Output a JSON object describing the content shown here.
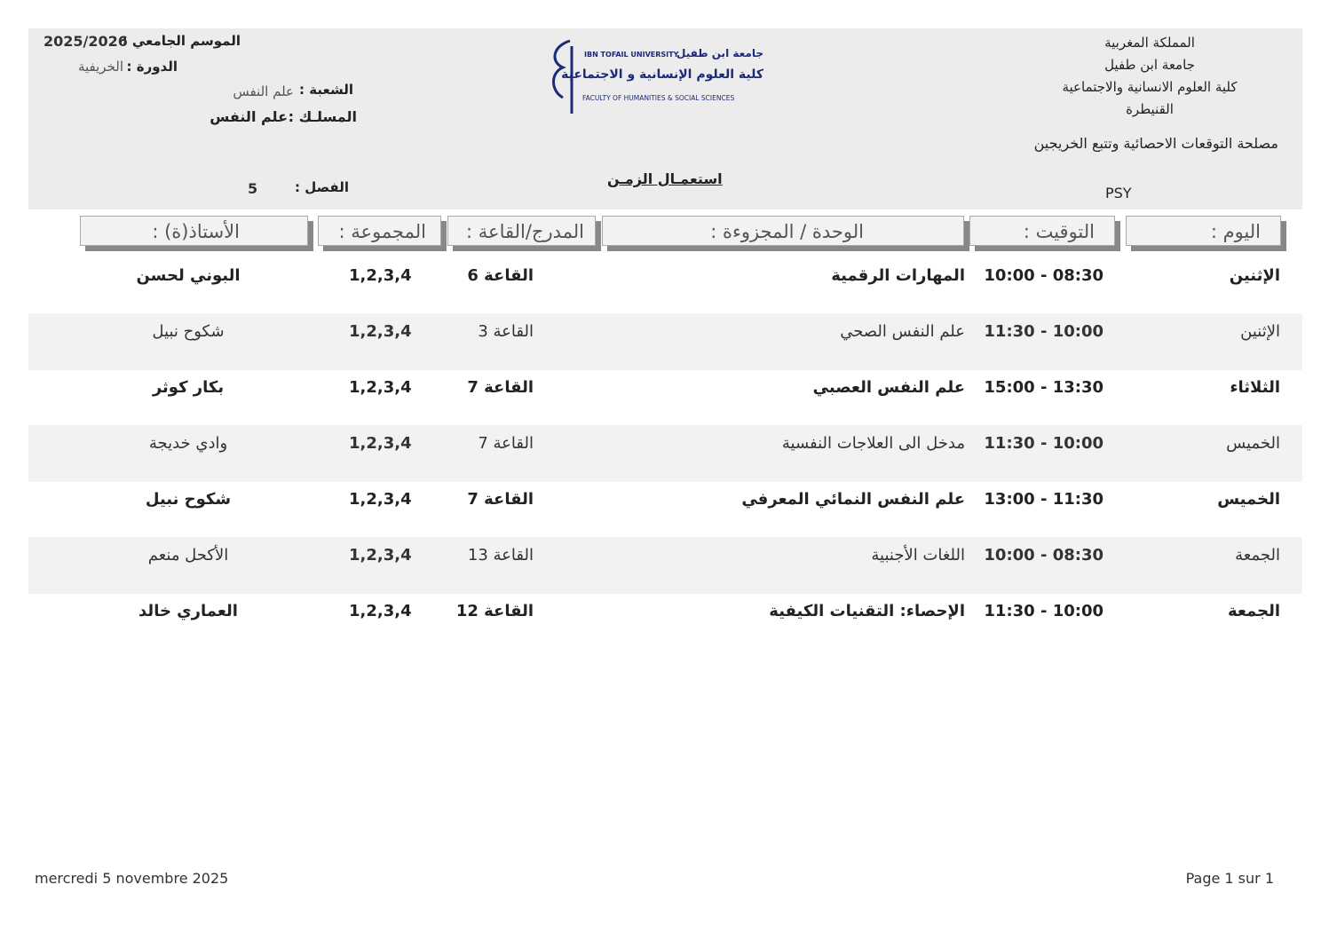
{
  "header_right": {
    "line1": "المملكة المغربية",
    "line2": "جامعة ابن طفيل",
    "line3": "كلية العلوم الانسانية والاجتماعية",
    "line4": "القنيطرة",
    "service": "مصلحة التوقعات الاحصائية وتتبع الخريجين",
    "code": "PSY"
  },
  "header_left": {
    "season_label": "الموسم الجامعي :",
    "season_value": "2025/2026",
    "session_label": "الدورة :",
    "session_value": "الخريفية",
    "branch_label": "الشعبة :",
    "branch_value": "علم النفس",
    "track_label": "المسلـك :",
    "track_value": "علم النفس",
    "semester_label": "الفصل :",
    "semester_value": "5"
  },
  "logo": {
    "en_top": "IBN TOFAIL UNIVERSITY",
    "ar_top": "جامعة ابن طفيل",
    "ar_faculty": "كلية العلوم الإنسانية و الاجتماعية",
    "en_faculty": "FACULTY OF HUMANITIES & SOCIAL SCIENCES",
    "color": "#1c2a7a"
  },
  "title": "استعمـال الزمـن",
  "columns": {
    "day": "اليوم :",
    "time": "التوقيت :",
    "module": "الوحدة / المجزوءة :",
    "room": "المدرج/القاعة :",
    "group": "المجموعة :",
    "teacher": "الأستاذ(ة) :"
  },
  "rows": [
    {
      "day": "الإثنين",
      "time": "08:30 - 10:00",
      "module": "المهارات الرقمية",
      "room": "القاعة 6",
      "group": "1,2,3,4",
      "teacher": "البوني لحسن"
    },
    {
      "day": "الإثنين",
      "time": "10:00 - 11:30",
      "module": "علم النفس الصحي",
      "room": "القاعة 3",
      "group": "1,2,3,4",
      "teacher": "شكوح نبيل"
    },
    {
      "day": "الثلاثاء",
      "time": "13:30 - 15:00",
      "module": "علم النفس العصبي",
      "room": "القاعة 7",
      "group": "1,2,3,4",
      "teacher": "بكار كوثر"
    },
    {
      "day": "الخميس",
      "time": "10:00 - 11:30",
      "module": "مدخل الى العلاجات النفسية",
      "room": "القاعة 7",
      "group": "1,2,3,4",
      "teacher": "وادي خديجة"
    },
    {
      "day": "الخميس",
      "time": "11:30 - 13:00",
      "module": "علم النفس النمائي المعرفي",
      "room": "القاعة 7",
      "group": "1,2,3,4",
      "teacher": "شكوح نبيل"
    },
    {
      "day": "الجمعة",
      "time": "08:30 - 10:00",
      "module": "اللغات الأجنبية",
      "room": "القاعة 13",
      "group": "1,2,3,4",
      "teacher": "الأكحل منعم"
    },
    {
      "day": "الجمعة",
      "time": "10:00 - 11:30",
      "module": "الإحصاء: التقنيات الكيفية",
      "room": "القاعة 12",
      "group": "1,2,3,4",
      "teacher": "العماري خالد"
    }
  ],
  "footer": {
    "date": "mercredi 5 novembre 2025",
    "page": "Page 1 sur 1"
  }
}
